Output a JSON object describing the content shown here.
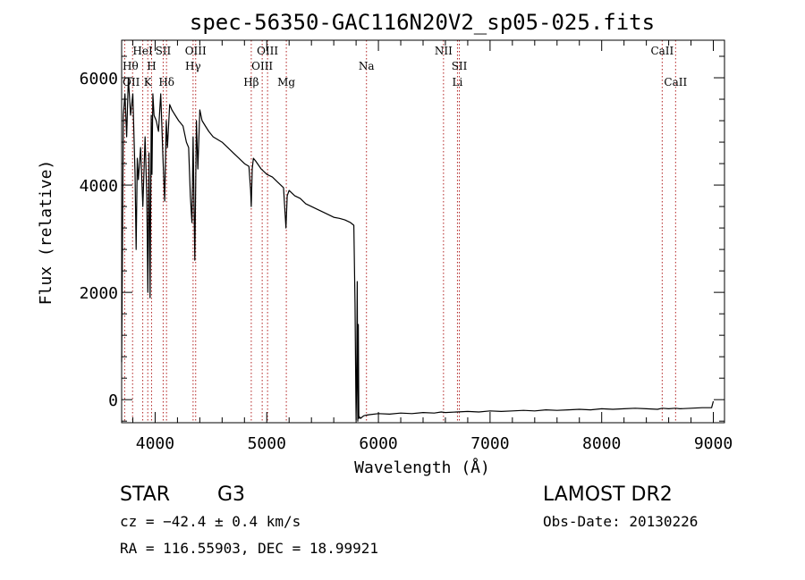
{
  "chart_data": {
    "type": "line",
    "title": "spec-56350-GAC116N20V2_sp05-025.fits",
    "xlabel": "Wavelength (Å)",
    "ylabel": "Flux (relative)",
    "xlim": [
      3700,
      9100
    ],
    "ylim": [
      -430,
      6700
    ],
    "x_ticks": [
      4000,
      5000,
      6000,
      7000,
      8000,
      9000
    ],
    "x_tick_labels": [
      "4000",
      "5000",
      "6000",
      "7000",
      "8000",
      "9000"
    ],
    "y_ticks": [
      0,
      2000,
      4000,
      6000
    ],
    "y_tick_labels": [
      "0",
      "2000",
      "4000",
      "6000"
    ],
    "series": [
      {
        "name": "flux",
        "color": "#000000",
        "x": [
          3700,
          3715,
          3730,
          3745,
          3760,
          3780,
          3800,
          3820,
          3830,
          3840,
          3850,
          3870,
          3890,
          3910,
          3925,
          3935,
          3945,
          3955,
          3965,
          3972,
          3980,
          3990,
          4010,
          4030,
          4050,
          4070,
          4085,
          4100,
          4110,
          4130,
          4150,
          4180,
          4210,
          4250,
          4280,
          4300,
          4315,
          4330,
          4340,
          4355,
          4370,
          4383,
          4400,
          4420,
          4450,
          4480,
          4520,
          4560,
          4600,
          4650,
          4700,
          4750,
          4800,
          4840,
          4855,
          4861,
          4870,
          4880,
          4900,
          4950,
          5000,
          5050,
          5100,
          5150,
          5172,
          5183,
          5200,
          5250,
          5300,
          5350,
          5400,
          5450,
          5500,
          5550,
          5600,
          5650,
          5700,
          5750,
          5780,
          5790,
          5800,
          5805,
          5810,
          5815,
          5820,
          5825,
          5830,
          5840,
          5850,
          5870,
          5890,
          5920,
          6000,
          6100,
          6200,
          6300,
          6400,
          6500,
          6563,
          6600,
          6700,
          6800,
          6900,
          7000,
          7100,
          7200,
          7300,
          7400,
          7500,
          7600,
          7700,
          7800,
          7900,
          8000,
          8100,
          8200,
          8300,
          8400,
          8500,
          8542,
          8600,
          8662,
          8700,
          8800,
          8900,
          8985,
          9000
        ],
        "y": [
          700,
          5300,
          5700,
          4900,
          6000,
          5300,
          5700,
          4200,
          2800,
          4500,
          4100,
          4700,
          3600,
          4900,
          3800,
          2000,
          4600,
          1900,
          5300,
          4200,
          5700,
          5300,
          5200,
          5000,
          5700,
          4500,
          3700,
          5200,
          4700,
          5500,
          5400,
          5300,
          5200,
          5100,
          4800,
          4700,
          3800,
          3300,
          4900,
          2600,
          5200,
          4300,
          5400,
          5200,
          5100,
          5000,
          4900,
          4850,
          4800,
          4700,
          4600,
          4500,
          4400,
          4350,
          3900,
          3600,
          4300,
          4500,
          4450,
          4300,
          4200,
          4150,
          4050,
          3950,
          3200,
          3800,
          3900,
          3800,
          3750,
          3650,
          3600,
          3550,
          3500,
          3450,
          3400,
          3380,
          3350,
          3300,
          3250,
          1800,
          -380,
          300,
          2200,
          -400,
          1400,
          -350,
          -320,
          -350,
          -330,
          -300,
          -290,
          -280,
          -260,
          -270,
          -250,
          -260,
          -240,
          -250,
          -230,
          -240,
          -230,
          -220,
          -230,
          -210,
          -220,
          -210,
          -200,
          -210,
          -190,
          -200,
          -190,
          -180,
          -190,
          -170,
          -180,
          -170,
          -160,
          -170,
          -180,
          -160,
          -170,
          -160,
          -170,
          -160,
          -150,
          -150,
          -30
        ]
      }
    ],
    "line_markers": [
      {
        "wl": 3727,
        "label": "OII",
        "row": 3,
        "align": "left"
      },
      {
        "wl": 3798,
        "label": "Hθ",
        "row": 2,
        "align": "left"
      },
      {
        "wl": 3889,
        "label": "HeI",
        "row": 1,
        "align": "center"
      },
      {
        "wl": 3934,
        "label": "K",
        "row": 3,
        "align": "center"
      },
      {
        "wl": 3968,
        "label": "H",
        "row": 2,
        "align": "center"
      },
      {
        "wl": 4072,
        "label": "SII",
        "row": 1,
        "align": "center"
      },
      {
        "wl": 4102,
        "label": "Hδ",
        "row": 3,
        "align": "center"
      },
      {
        "wl": 4340,
        "label": "Hγ",
        "row": 2,
        "align": "center"
      },
      {
        "wl": 4363,
        "label": "OIII",
        "row": 1,
        "align": "center"
      },
      {
        "wl": 4861,
        "label": "Hβ",
        "row": 3,
        "align": "center"
      },
      {
        "wl": 4959,
        "label": "OIII",
        "row": 2,
        "align": "center"
      },
      {
        "wl": 5007,
        "label": "OIII",
        "row": 1,
        "align": "center"
      },
      {
        "wl": 5175,
        "label": "Mg",
        "row": 3,
        "align": "center"
      },
      {
        "wl": 5893,
        "label": "Na",
        "row": 2,
        "align": "center"
      },
      {
        "wl": 6583,
        "label": "NII",
        "row": 1,
        "align": "center"
      },
      {
        "wl": 6708,
        "label": "Li",
        "row": 3,
        "align": "center"
      },
      {
        "wl": 6725,
        "label": "SII",
        "row": 2,
        "align": "center"
      },
      {
        "wl": 8542,
        "label": "CaII",
        "row": 1,
        "align": "center"
      },
      {
        "wl": 8662,
        "label": "CaII",
        "row": 3,
        "align": "center"
      }
    ],
    "marker_color": "#b22222"
  },
  "footer": {
    "object_class": "STAR",
    "subclass": "G3",
    "survey": "LAMOST DR2",
    "cz": "cz = −42.4 ± 0.4 km/s",
    "obs_date": "Obs-Date: 20130226",
    "coords": "RA = 116.55903, DEC =  18.99921"
  }
}
